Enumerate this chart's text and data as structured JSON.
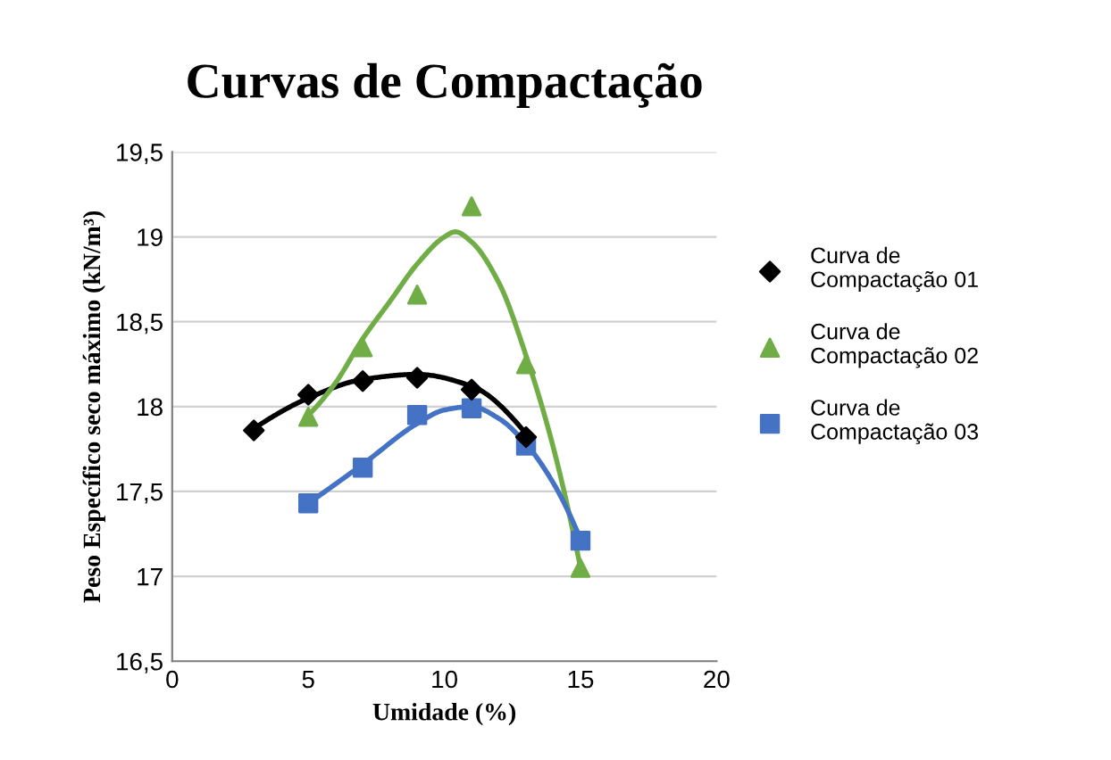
{
  "chart_data": {
    "type": "scatter",
    "title": "Curvas de Compactação",
    "xlabel": "Umidade (%)",
    "ylabel": "Peso Específico seco máximo (kN/m³)",
    "xlim": [
      0,
      20
    ],
    "xticks": [
      0,
      5,
      10,
      15,
      20
    ],
    "ylim": [
      16.5,
      19.5
    ],
    "yticks": [
      {
        "value": 16.5,
        "label": "16,5"
      },
      17,
      {
        "value": 17.5,
        "label": "17,5"
      },
      18,
      {
        "value": 18.5,
        "label": "18,5"
      },
      19,
      {
        "value": 19.5,
        "label": "19,5"
      }
    ],
    "grid": "y",
    "legend": "right",
    "series": [
      {
        "name": "Curva de Compactação 01",
        "marker": "diamond",
        "color": "#000000",
        "x": [
          3,
          5,
          7,
          9,
          11,
          13
        ],
        "values": [
          17.86,
          18.07,
          18.15,
          18.17,
          18.1,
          17.82
        ]
      },
      {
        "name": "Curva de Compactação 02",
        "marker": "triangle",
        "color": "#70ad47",
        "x": [
          5,
          7,
          9,
          11,
          13,
          15
        ],
        "values": [
          17.94,
          18.35,
          18.66,
          19.18,
          18.25,
          17.05
        ]
      },
      {
        "name": "Curva de Compactação 03",
        "marker": "square",
        "color": "#4472c4",
        "x": [
          5,
          7,
          9,
          11,
          13,
          15
        ],
        "values": [
          17.43,
          17.64,
          17.95,
          17.99,
          17.77,
          17.21
        ]
      },
      {
        "type": "line",
        "marker": "none",
        "color": "#000000",
        "x": [
          3,
          5,
          7,
          9,
          11,
          13
        ],
        "values": [
          17.87,
          18.05,
          18.16,
          18.19,
          18.12,
          17.84
        ]
      },
      {
        "type": "line",
        "marker": "none",
        "color": "#70ad47",
        "x": [
          5,
          6,
          7,
          8,
          9,
          10,
          10.4,
          11,
          12,
          13,
          14,
          15
        ],
        "values": [
          17.95,
          18.14,
          18.4,
          18.62,
          18.84,
          19.0,
          19.03,
          18.97,
          18.73,
          18.3,
          17.76,
          17.05
        ]
      },
      {
        "type": "line",
        "marker": "none",
        "color": "#4472c4",
        "x": [
          5,
          7,
          9,
          10,
          11,
          12,
          13,
          14,
          15
        ],
        "values": [
          17.43,
          17.66,
          17.9,
          17.98,
          18.0,
          17.93,
          17.78,
          17.55,
          17.22
        ]
      }
    ]
  }
}
